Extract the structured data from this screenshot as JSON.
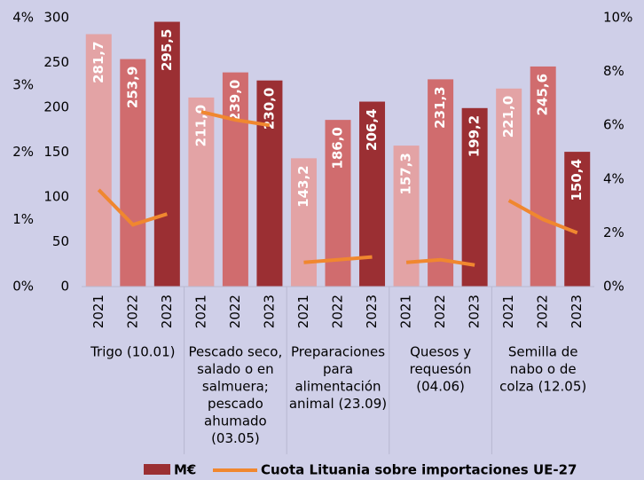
{
  "chart_data": {
    "type": "bar-line",
    "groups": [
      {
        "label": [
          "Trigo (10.01)"
        ],
        "categories": [
          "2021",
          "2022",
          "2023"
        ],
        "values": [
          281.7,
          253.9,
          295.5
        ],
        "value_labels": [
          "281,7",
          "253,9",
          "295,5"
        ],
        "share": [
          3.6,
          2.3,
          2.7
        ]
      },
      {
        "label": [
          "Pescado seco,",
          "salado o en",
          "salmuera;",
          "pescado",
          "ahumado",
          "(03.05)"
        ],
        "categories": [
          "2021",
          "2022",
          "2023"
        ],
        "values": [
          211.0,
          239.0,
          230.0
        ],
        "value_labels": [
          "211,0",
          "239,0",
          "230,0"
        ],
        "share": [
          6.5,
          6.2,
          6.0
        ]
      },
      {
        "label": [
          "Preparaciones",
          "para",
          "alimentación",
          "animal  (23.09)"
        ],
        "categories": [
          "2021",
          "2022",
          "2023"
        ],
        "values": [
          143.2,
          186.0,
          206.4
        ],
        "value_labels": [
          "143,2",
          "186,0",
          "206,4"
        ],
        "share": [
          0.9,
          1.0,
          1.1
        ]
      },
      {
        "label": [
          "Quesos y",
          "requesón",
          "(04.06)"
        ],
        "categories": [
          "2021",
          "2022",
          "2023"
        ],
        "values": [
          157.3,
          231.3,
          199.2
        ],
        "value_labels": [
          "157,3",
          "231,3",
          "199,2"
        ],
        "share": [
          0.9,
          1.0,
          0.8
        ]
      },
      {
        "label": [
          "Semilla de",
          "nabo o de",
          "colza (12.05)"
        ],
        "categories": [
          "2021",
          "2022",
          "2023"
        ],
        "values": [
          221.0,
          245.6,
          150.4
        ],
        "value_labels": [
          "221,0",
          "245,6",
          "150,4"
        ],
        "share": [
          3.2,
          2.5,
          2.0
        ]
      }
    ],
    "bar_colors": [
      "#e3a3a5",
      "#d06c6e",
      "#9b2f33"
    ],
    "line_color": "#f0872f",
    "legend": [
      "M€",
      "Cuota Lituania sobre importaciones UE-27"
    ],
    "ylim": [
      0,
      300
    ],
    "yticks": [
      0,
      50,
      100,
      150,
      200,
      250,
      300
    ],
    "y2lim": [
      0,
      10
    ],
    "y2ticks": [
      {
        "value": 0,
        "label": "0%"
      },
      {
        "value": 2,
        "label": "2%"
      },
      {
        "value": 4,
        "label": "4%"
      },
      {
        "value": 6,
        "label": "6%"
      },
      {
        "value": 8,
        "label": "8%"
      },
      {
        "value": 10,
        "label": "10%"
      }
    ],
    "y3lim": [
      0,
      4
    ],
    "y3ticks": [
      {
        "value": 0,
        "label": "0%"
      },
      {
        "value": 1,
        "label": "1%"
      },
      {
        "value": 2,
        "label": "2%"
      },
      {
        "value": 3,
        "label": "3%"
      },
      {
        "value": 4,
        "label": "4%"
      }
    ]
  }
}
